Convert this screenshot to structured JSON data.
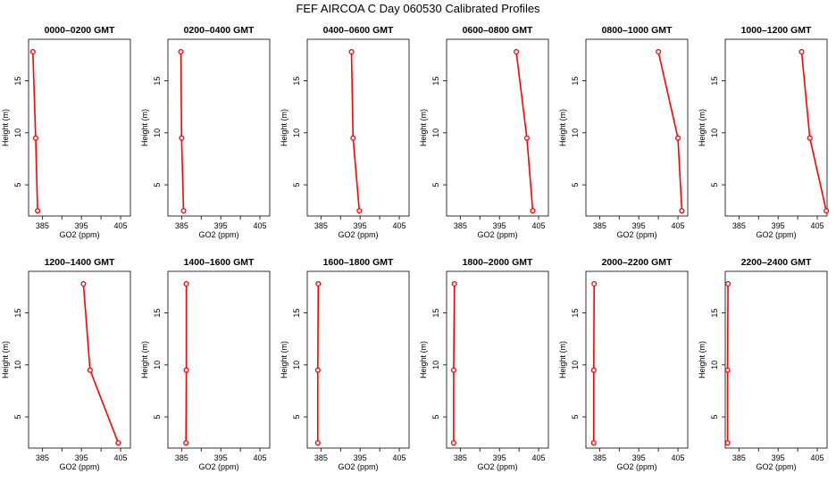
{
  "figure_title": "FEF AIRCOA C  Day 060530  Calibrated Profiles",
  "colors": {
    "series": "#ff0000",
    "axes": "#000000",
    "background": "#ffffff"
  },
  "chart_data": [
    {
      "type": "line",
      "title": "0000–0200 GMT",
      "xlabel": "GO2 (ppm)",
      "ylabel": "Height (m)",
      "xlim": [
        381.5,
        407.5
      ],
      "ylim": [
        2.0,
        19.0
      ],
      "xticks": [
        385,
        390,
        395,
        400,
        405
      ],
      "xtick_labels": [
        "385",
        "",
        "395",
        "",
        "405"
      ],
      "yticks": [
        5,
        10,
        15
      ],
      "ytick_labels": [
        "5",
        "10",
        "15"
      ],
      "series": [
        {
          "x": [
            383.8,
            383.3,
            382.6
          ],
          "y": [
            2.5,
            9.5,
            17.8
          ]
        }
      ]
    },
    {
      "type": "line",
      "title": "0200–0400 GMT",
      "xlabel": "GO2 (ppm)",
      "ylabel": "Height (m)",
      "xlim": [
        381.5,
        407.5
      ],
      "ylim": [
        2.0,
        19.0
      ],
      "xticks": [
        385,
        390,
        395,
        400,
        405
      ],
      "xtick_labels": [
        "385",
        "",
        "395",
        "",
        "405"
      ],
      "yticks": [
        5,
        10,
        15
      ],
      "ytick_labels": [
        "5",
        "10",
        "15"
      ],
      "series": [
        {
          "x": [
            385.5,
            385.0,
            384.8
          ],
          "y": [
            2.5,
            9.5,
            17.8
          ]
        }
      ]
    },
    {
      "type": "line",
      "title": "0400–0600 GMT",
      "xlabel": "GO2 (ppm)",
      "ylabel": "Height (m)",
      "xlim": [
        381.5,
        407.5
      ],
      "ylim": [
        2.0,
        19.0
      ],
      "xticks": [
        385,
        390,
        395,
        400,
        405
      ],
      "xtick_labels": [
        "385",
        "",
        "395",
        "",
        "405"
      ],
      "yticks": [
        5,
        10,
        15
      ],
      "ytick_labels": [
        "5",
        "10",
        "15"
      ],
      "series": [
        {
          "x": [
            394.8,
            393.2,
            392.8
          ],
          "y": [
            2.5,
            9.5,
            17.8
          ]
        }
      ]
    },
    {
      "type": "line",
      "title": "0600–0800 GMT",
      "xlabel": "GO2 (ppm)",
      "ylabel": "Height (m)",
      "xlim": [
        381.5,
        407.5
      ],
      "ylim": [
        2.0,
        19.0
      ],
      "xticks": [
        385,
        390,
        395,
        400,
        405
      ],
      "xtick_labels": [
        "385",
        "",
        "395",
        "",
        "405"
      ],
      "yticks": [
        5,
        10,
        15
      ],
      "ytick_labels": [
        "5",
        "10",
        "15"
      ],
      "series": [
        {
          "x": [
            403.5,
            402.0,
            399.3
          ],
          "y": [
            2.5,
            9.5,
            17.8
          ]
        }
      ]
    },
    {
      "type": "line",
      "title": "0800–1000 GMT",
      "xlabel": "GO2 (ppm)",
      "ylabel": "Height (m)",
      "xlim": [
        381.5,
        407.5
      ],
      "ylim": [
        2.0,
        19.0
      ],
      "xticks": [
        385,
        390,
        395,
        400,
        405
      ],
      "xtick_labels": [
        "385",
        "",
        "395",
        "",
        "405"
      ],
      "yticks": [
        5,
        10,
        15
      ],
      "ytick_labels": [
        "5",
        "10",
        "15"
      ],
      "series": [
        {
          "x": [
            406.0,
            405.0,
            400.0
          ],
          "y": [
            2.5,
            9.5,
            17.8
          ]
        }
      ]
    },
    {
      "type": "line",
      "title": "1000–1200 GMT",
      "xlabel": "GO2 (ppm)",
      "ylabel": "Height (m)",
      "xlim": [
        381.5,
        407.5
      ],
      "ylim": [
        2.0,
        19.0
      ],
      "xticks": [
        385,
        390,
        395,
        400,
        405
      ],
      "xtick_labels": [
        "385",
        "",
        "395",
        "",
        "405"
      ],
      "yticks": [
        5,
        10,
        15
      ],
      "ytick_labels": [
        "5",
        "10",
        "15"
      ],
      "series": [
        {
          "x": [
            407.3,
            403.1,
            401.0
          ],
          "y": [
            2.5,
            9.5,
            17.8
          ]
        }
      ]
    },
    {
      "type": "line",
      "title": "1200–1400 GMT",
      "xlabel": "GO2 (ppm)",
      "ylabel": "Height (m)",
      "xlim": [
        381.5,
        407.5
      ],
      "ylim": [
        2.0,
        19.0
      ],
      "xticks": [
        385,
        390,
        395,
        400,
        405
      ],
      "xtick_labels": [
        "385",
        "",
        "395",
        "",
        "405"
      ],
      "yticks": [
        5,
        10,
        15
      ],
      "ytick_labels": [
        "5",
        "10",
        "15"
      ],
      "series": [
        {
          "x": [
            404.4,
            397.2,
            395.5
          ],
          "y": [
            2.5,
            9.5,
            17.8
          ]
        }
      ]
    },
    {
      "type": "line",
      "title": "1400–1600 GMT",
      "xlabel": "GO2 (ppm)",
      "ylabel": "Height (m)",
      "xlim": [
        381.5,
        407.5
      ],
      "ylim": [
        2.0,
        19.0
      ],
      "xticks": [
        385,
        390,
        395,
        400,
        405
      ],
      "xtick_labels": [
        "385",
        "",
        "395",
        "",
        "405"
      ],
      "yticks": [
        5,
        10,
        15
      ],
      "ytick_labels": [
        "5",
        "10",
        "15"
      ],
      "series": [
        {
          "x": [
            386.1,
            386.2,
            386.2
          ],
          "y": [
            2.5,
            9.5,
            17.8
          ]
        }
      ]
    },
    {
      "type": "line",
      "title": "1600–1800 GMT",
      "xlabel": "GO2 (ppm)",
      "ylabel": "Height (m)",
      "xlim": [
        381.5,
        407.5
      ],
      "ylim": [
        2.0,
        19.0
      ],
      "xticks": [
        385,
        390,
        395,
        400,
        405
      ],
      "xtick_labels": [
        "385",
        "",
        "395",
        "",
        "405"
      ],
      "yticks": [
        5,
        10,
        15
      ],
      "ytick_labels": [
        "5",
        "10",
        "15"
      ],
      "series": [
        {
          "x": [
            384.2,
            384.2,
            384.3
          ],
          "y": [
            2.5,
            9.5,
            17.8
          ]
        }
      ]
    },
    {
      "type": "line",
      "title": "1800–2000 GMT",
      "xlabel": "GO2 (ppm)",
      "ylabel": "Height (m)",
      "xlim": [
        381.5,
        407.5
      ],
      "ylim": [
        2.0,
        19.0
      ],
      "xticks": [
        385,
        390,
        395,
        400,
        405
      ],
      "xtick_labels": [
        "385",
        "",
        "395",
        "",
        "405"
      ],
      "yticks": [
        5,
        10,
        15
      ],
      "ytick_labels": [
        "5",
        "10",
        "15"
      ],
      "series": [
        {
          "x": [
            383.3,
            383.3,
            383.5
          ],
          "y": [
            2.5,
            9.5,
            17.8
          ]
        }
      ]
    },
    {
      "type": "line",
      "title": "2000–2200 GMT",
      "xlabel": "GO2 (ppm)",
      "ylabel": "Height (m)",
      "xlim": [
        381.5,
        407.5
      ],
      "ylim": [
        2.0,
        19.0
      ],
      "xticks": [
        385,
        390,
        395,
        400,
        405
      ],
      "xtick_labels": [
        "385",
        "",
        "395",
        "",
        "405"
      ],
      "yticks": [
        5,
        10,
        15
      ],
      "ytick_labels": [
        "5",
        "10",
        "15"
      ],
      "series": [
        {
          "x": [
            383.5,
            383.5,
            383.6
          ],
          "y": [
            2.5,
            9.5,
            17.8
          ]
        }
      ]
    },
    {
      "type": "line",
      "title": "2200–2400 GMT",
      "xlabel": "GO2 (ppm)",
      "ylabel": "Height (m)",
      "xlim": [
        381.5,
        407.5
      ],
      "ylim": [
        2.0,
        19.0
      ],
      "xticks": [
        385,
        390,
        395,
        400,
        405
      ],
      "xtick_labels": [
        "385",
        "",
        "395",
        "",
        "405"
      ],
      "yticks": [
        5,
        10,
        15
      ],
      "ytick_labels": [
        "5",
        "10",
        "15"
      ],
      "series": [
        {
          "x": [
            382.1,
            382.1,
            382.2
          ],
          "y": [
            2.5,
            9.5,
            17.8
          ]
        }
      ]
    }
  ]
}
